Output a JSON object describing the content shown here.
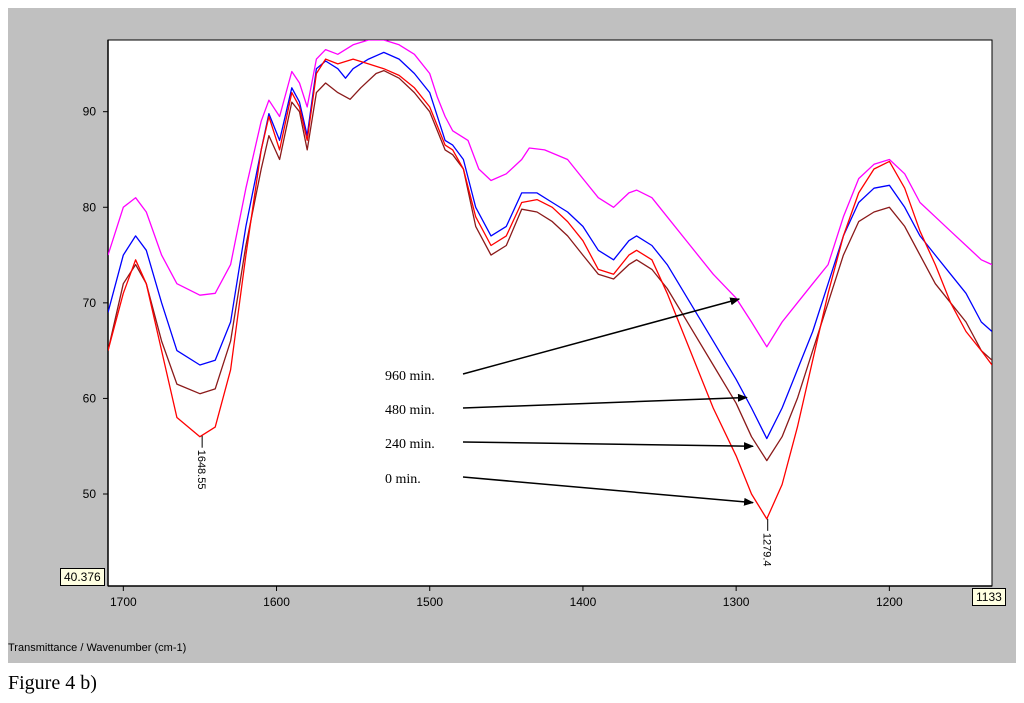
{
  "chart_data": {
    "type": "line",
    "xlabel": "Transmittance / Wavenumber (cm-1)",
    "ylabel": "",
    "xlim": [
      1710,
      1133
    ],
    "ylim": [
      40.376,
      97.5
    ],
    "x_reversed": true,
    "grid": false,
    "x_ticks": [
      1700,
      1600,
      1500,
      1400,
      1300,
      1200
    ],
    "y_ticks": [
      50,
      60,
      70,
      80,
      90
    ],
    "readouts": {
      "y_min": "40.376",
      "x_max": "1133"
    },
    "peak_labels": [
      {
        "text": "1648.55",
        "x": 1648.55,
        "y": 56.1
      },
      {
        "text": "1279.4",
        "x": 1279.4,
        "y": 47.4
      }
    ],
    "annotations": [
      {
        "text": "960 min.",
        "series": "magenta",
        "arrow_to": [
          1298,
          70.4
        ]
      },
      {
        "text": "480 min.",
        "series": "darkred",
        "arrow_to": [
          1293,
          60.1
        ]
      },
      {
        "text": "240 min.",
        "series": "blue",
        "arrow_to": [
          1289,
          55.0
        ]
      },
      {
        "text": "0 min.",
        "series": "red",
        "arrow_to": [
          1289,
          49.1
        ]
      }
    ],
    "series": [
      {
        "color": "#ff00ff",
        "points": [
          [
            1710,
            75.0
          ],
          [
            1700,
            80.0
          ],
          [
            1692,
            81.0
          ],
          [
            1685,
            79.5
          ],
          [
            1675,
            75.0
          ],
          [
            1665,
            72.0
          ],
          [
            1650,
            70.8
          ],
          [
            1640,
            71.0
          ],
          [
            1630,
            74.0
          ],
          [
            1620,
            82.0
          ],
          [
            1610,
            89.0
          ],
          [
            1605,
            91.2
          ],
          [
            1598,
            89.5
          ],
          [
            1590,
            94.2
          ],
          [
            1585,
            93.0
          ],
          [
            1580,
            90.5
          ],
          [
            1574,
            95.5
          ],
          [
            1568,
            96.5
          ],
          [
            1560,
            96.0
          ],
          [
            1550,
            97.0
          ],
          [
            1540,
            97.5
          ],
          [
            1530,
            97.5
          ],
          [
            1520,
            97.0
          ],
          [
            1510,
            96.0
          ],
          [
            1500,
            94.0
          ],
          [
            1495,
            91.5
          ],
          [
            1490,
            89.5
          ],
          [
            1485,
            88.0
          ],
          [
            1475,
            87.0
          ],
          [
            1468,
            84.0
          ],
          [
            1460,
            82.8
          ],
          [
            1450,
            83.5
          ],
          [
            1440,
            85.0
          ],
          [
            1435,
            86.2
          ],
          [
            1425,
            86.0
          ],
          [
            1410,
            85.0
          ],
          [
            1400,
            83.0
          ],
          [
            1390,
            81.0
          ],
          [
            1380,
            80.0
          ],
          [
            1370,
            81.5
          ],
          [
            1365,
            81.8
          ],
          [
            1355,
            81.0
          ],
          [
            1345,
            79.0
          ],
          [
            1330,
            76.0
          ],
          [
            1315,
            73.0
          ],
          [
            1300,
            70.5
          ],
          [
            1290,
            68.0
          ],
          [
            1280,
            65.4
          ],
          [
            1270,
            68.0
          ],
          [
            1260,
            70.0
          ],
          [
            1250,
            72.0
          ],
          [
            1240,
            74.0
          ],
          [
            1230,
            79.0
          ],
          [
            1220,
            83.0
          ],
          [
            1210,
            84.5
          ],
          [
            1200,
            85.0
          ],
          [
            1190,
            83.5
          ],
          [
            1180,
            80.5
          ],
          [
            1170,
            79.0
          ],
          [
            1160,
            77.5
          ],
          [
            1150,
            76.0
          ],
          [
            1140,
            74.5
          ],
          [
            1133,
            74.0
          ]
        ]
      },
      {
        "color": "#0000ff",
        "points": [
          [
            1710,
            69.0
          ],
          [
            1700,
            75.0
          ],
          [
            1692,
            77.0
          ],
          [
            1685,
            75.5
          ],
          [
            1675,
            70.0
          ],
          [
            1665,
            65.0
          ],
          [
            1650,
            63.5
          ],
          [
            1640,
            64.0
          ],
          [
            1630,
            68.0
          ],
          [
            1620,
            78.0
          ],
          [
            1610,
            86.0
          ],
          [
            1605,
            89.8
          ],
          [
            1598,
            87.0
          ],
          [
            1590,
            92.5
          ],
          [
            1585,
            91.0
          ],
          [
            1580,
            87.5
          ],
          [
            1574,
            94.5
          ],
          [
            1568,
            95.3
          ],
          [
            1560,
            94.5
          ],
          [
            1555,
            93.5
          ],
          [
            1550,
            94.5
          ],
          [
            1540,
            95.5
          ],
          [
            1530,
            96.2
          ],
          [
            1520,
            95.5
          ],
          [
            1510,
            94.0
          ],
          [
            1500,
            92.0
          ],
          [
            1490,
            87.0
          ],
          [
            1485,
            86.5
          ],
          [
            1478,
            85.0
          ],
          [
            1470,
            80.0
          ],
          [
            1460,
            77.0
          ],
          [
            1450,
            78.0
          ],
          [
            1440,
            81.5
          ],
          [
            1430,
            81.5
          ],
          [
            1420,
            80.5
          ],
          [
            1410,
            79.5
          ],
          [
            1400,
            78.0
          ],
          [
            1390,
            75.5
          ],
          [
            1380,
            74.5
          ],
          [
            1370,
            76.5
          ],
          [
            1365,
            77.0
          ],
          [
            1355,
            76.0
          ],
          [
            1345,
            74.0
          ],
          [
            1330,
            70.0
          ],
          [
            1315,
            66.0
          ],
          [
            1300,
            62.0
          ],
          [
            1290,
            59.0
          ],
          [
            1280,
            55.8
          ],
          [
            1270,
            59.0
          ],
          [
            1260,
            63.0
          ],
          [
            1250,
            67.0
          ],
          [
            1240,
            72.0
          ],
          [
            1230,
            77.0
          ],
          [
            1220,
            80.5
          ],
          [
            1210,
            82.0
          ],
          [
            1200,
            82.3
          ],
          [
            1190,
            80.0
          ],
          [
            1180,
            77.0
          ],
          [
            1170,
            75.0
          ],
          [
            1160,
            73.0
          ],
          [
            1150,
            71.0
          ],
          [
            1140,
            68.0
          ],
          [
            1133,
            67.0
          ]
        ]
      },
      {
        "color": "#8b1a1a",
        "points": [
          [
            1710,
            65.0
          ],
          [
            1700,
            72.0
          ],
          [
            1692,
            74.0
          ],
          [
            1685,
            72.0
          ],
          [
            1675,
            66.0
          ],
          [
            1665,
            61.5
          ],
          [
            1650,
            60.5
          ],
          [
            1640,
            61.0
          ],
          [
            1630,
            66.0
          ],
          [
            1620,
            76.0
          ],
          [
            1610,
            84.0
          ],
          [
            1605,
            87.5
          ],
          [
            1598,
            85.0
          ],
          [
            1590,
            91.0
          ],
          [
            1585,
            90.0
          ],
          [
            1580,
            86.0
          ],
          [
            1574,
            92.0
          ],
          [
            1568,
            93.0
          ],
          [
            1560,
            92.0
          ],
          [
            1552,
            91.3
          ],
          [
            1545,
            92.5
          ],
          [
            1535,
            94.0
          ],
          [
            1530,
            94.3
          ],
          [
            1520,
            93.5
          ],
          [
            1510,
            92.0
          ],
          [
            1500,
            90.0
          ],
          [
            1490,
            86.0
          ],
          [
            1485,
            85.5
          ],
          [
            1478,
            84.0
          ],
          [
            1470,
            78.0
          ],
          [
            1460,
            75.0
          ],
          [
            1450,
            76.0
          ],
          [
            1440,
            79.8
          ],
          [
            1430,
            79.5
          ],
          [
            1420,
            78.5
          ],
          [
            1410,
            77.0
          ],
          [
            1400,
            75.0
          ],
          [
            1390,
            73.0
          ],
          [
            1380,
            72.5
          ],
          [
            1370,
            74.0
          ],
          [
            1365,
            74.5
          ],
          [
            1355,
            73.5
          ],
          [
            1345,
            71.5
          ],
          [
            1330,
            67.5
          ],
          [
            1315,
            63.5
          ],
          [
            1300,
            59.5
          ],
          [
            1290,
            56.0
          ],
          [
            1280,
            53.5
          ],
          [
            1270,
            56.0
          ],
          [
            1260,
            60.0
          ],
          [
            1250,
            65.0
          ],
          [
            1240,
            70.0
          ],
          [
            1230,
            75.0
          ],
          [
            1220,
            78.5
          ],
          [
            1210,
            79.5
          ],
          [
            1200,
            80.0
          ],
          [
            1190,
            78.0
          ],
          [
            1180,
            75.0
          ],
          [
            1170,
            72.0
          ],
          [
            1160,
            70.0
          ],
          [
            1150,
            68.0
          ],
          [
            1140,
            65.0
          ],
          [
            1133,
            64.0
          ]
        ]
      },
      {
        "color": "#ff0000",
        "points": [
          [
            1710,
            65.0
          ],
          [
            1700,
            71.0
          ],
          [
            1692,
            74.5
          ],
          [
            1685,
            72.0
          ],
          [
            1675,
            65.0
          ],
          [
            1665,
            58.0
          ],
          [
            1650,
            56.0
          ],
          [
            1640,
            57.0
          ],
          [
            1630,
            63.0
          ],
          [
            1620,
            75.0
          ],
          [
            1610,
            86.0
          ],
          [
            1605,
            89.5
          ],
          [
            1598,
            86.0
          ],
          [
            1590,
            92.0
          ],
          [
            1585,
            90.5
          ],
          [
            1580,
            87.0
          ],
          [
            1574,
            94.0
          ],
          [
            1568,
            95.5
          ],
          [
            1560,
            95.0
          ],
          [
            1550,
            95.5
          ],
          [
            1540,
            95.0
          ],
          [
            1530,
            94.5
          ],
          [
            1520,
            93.8
          ],
          [
            1510,
            92.5
          ],
          [
            1500,
            90.5
          ],
          [
            1490,
            86.5
          ],
          [
            1485,
            86.0
          ],
          [
            1478,
            84.0
          ],
          [
            1470,
            79.0
          ],
          [
            1460,
            76.0
          ],
          [
            1450,
            77.0
          ],
          [
            1440,
            80.5
          ],
          [
            1430,
            80.8
          ],
          [
            1420,
            80.0
          ],
          [
            1410,
            78.5
          ],
          [
            1400,
            76.5
          ],
          [
            1390,
            73.5
          ],
          [
            1380,
            73.0
          ],
          [
            1370,
            75.0
          ],
          [
            1365,
            75.5
          ],
          [
            1355,
            74.5
          ],
          [
            1345,
            71.0
          ],
          [
            1330,
            65.0
          ],
          [
            1315,
            59.0
          ],
          [
            1300,
            54.0
          ],
          [
            1290,
            50.0
          ],
          [
            1280,
            47.4
          ],
          [
            1270,
            51.0
          ],
          [
            1260,
            57.0
          ],
          [
            1250,
            64.0
          ],
          [
            1240,
            71.0
          ],
          [
            1230,
            77.0
          ],
          [
            1220,
            81.5
          ],
          [
            1210,
            84.0
          ],
          [
            1200,
            84.8
          ],
          [
            1190,
            82.0
          ],
          [
            1180,
            77.5
          ],
          [
            1170,
            74.0
          ],
          [
            1160,
            70.0
          ],
          [
            1150,
            67.0
          ],
          [
            1140,
            65.0
          ],
          [
            1133,
            63.5
          ]
        ]
      }
    ]
  },
  "caption": "Figure 4 b)"
}
